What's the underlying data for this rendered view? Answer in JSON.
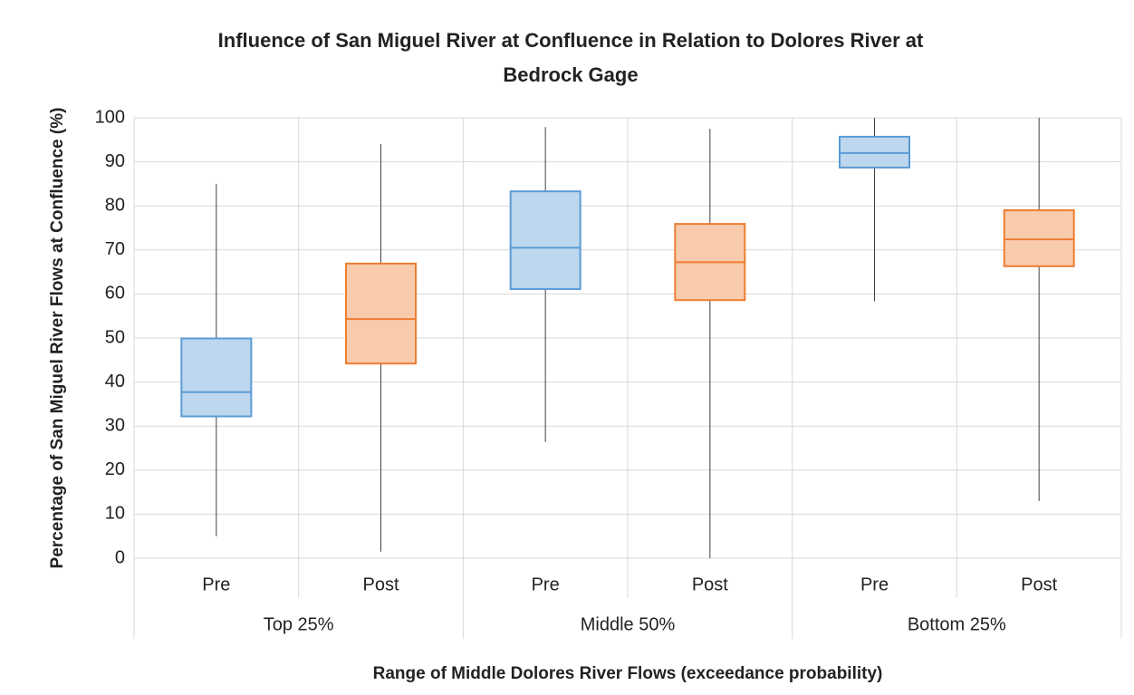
{
  "chart_data": {
    "type": "box",
    "title": [
      "Influence of San Miguel River at Confluence in Relation to Dolores River at",
      "Bedrock Gage"
    ],
    "y_label": "Percentage of San Miguel River Flows at Confluence (%)",
    "x_label": "Range of Middle Dolores River Flows (exceedance probability)",
    "groups": [
      "Top 25%",
      "Middle 50%",
      "Bottom 25%"
    ],
    "categories": [
      "Pre",
      "Post",
      "Pre",
      "Post",
      "Pre",
      "Post"
    ],
    "boxes": [
      {
        "min": 5,
        "q1": 32.2,
        "median": 37.7,
        "q3": 49.9,
        "max": 85,
        "fill": "#bdd7ee",
        "stroke": "#5b9bd5"
      },
      {
        "min": 1.5,
        "q1": 44.2,
        "median": 54.3,
        "q3": 66.9,
        "max": 94,
        "fill": "#f8cbad",
        "stroke": "#ed7d31"
      },
      {
        "min": 26.4,
        "q1": 61.1,
        "median": 70.5,
        "q3": 83.3,
        "max": 97.9,
        "fill": "#bdd7ee",
        "stroke": "#5b9bd5"
      },
      {
        "min": 0,
        "q1": 58.6,
        "median": 67.2,
        "q3": 75.9,
        "max": 97.5,
        "fill": "#f8cbad",
        "stroke": "#ed7d31"
      },
      {
        "min": 58.3,
        "q1": 88.7,
        "median": 92,
        "q3": 95.7,
        "max": 100,
        "fill": "#bdd7ee",
        "stroke": "#5b9bd5"
      },
      {
        "min": 13,
        "q1": 66.3,
        "median": 72.4,
        "q3": 79,
        "max": 100,
        "fill": "#f8cbad",
        "stroke": "#ed7d31"
      }
    ],
    "ylim": [
      0,
      100
    ],
    "yticks": [
      0,
      10,
      20,
      30,
      40,
      50,
      60,
      70,
      80,
      90,
      100
    ],
    "grid": true
  }
}
